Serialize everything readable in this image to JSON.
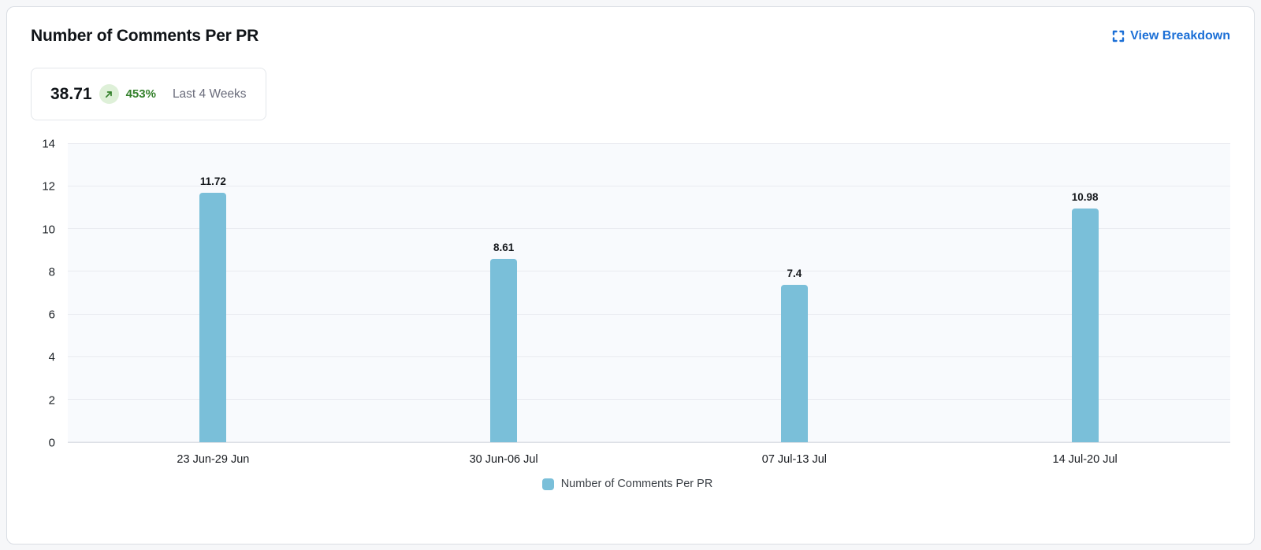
{
  "card": {
    "title": "Number of Comments Per PR",
    "view_breakdown_label": "View Breakdown"
  },
  "stat": {
    "value": "38.71",
    "change": "453%",
    "period": "Last 4 Weeks"
  },
  "colors": {
    "accent_blue": "#1b6fd6",
    "bar_blue": "#7abfd9",
    "positive_green": "#33802b",
    "positive_green_bg": "#def0d8"
  },
  "chart_data": {
    "type": "bar",
    "title": "Number of Comments Per PR",
    "categories": [
      "23 Jun-29 Jun",
      "30 Jun-06 Jul",
      "07 Jul-13 Jul",
      "14 Jul-20 Jul"
    ],
    "values": [
      11.72,
      8.61,
      7.4,
      10.98
    ],
    "value_labels": [
      "11.72",
      "8.61",
      "7.4",
      "10.98"
    ],
    "y_ticks": [
      0,
      2,
      4,
      6,
      8,
      10,
      12,
      14
    ],
    "ylim": [
      0,
      14
    ],
    "xlabel": "",
    "ylabel": "",
    "grid": true,
    "bar_color": "#7abfd9",
    "legend": [
      {
        "label": "Number of Comments Per PR",
        "color": "#7abfd9"
      }
    ],
    "legend_position": "bottom"
  }
}
